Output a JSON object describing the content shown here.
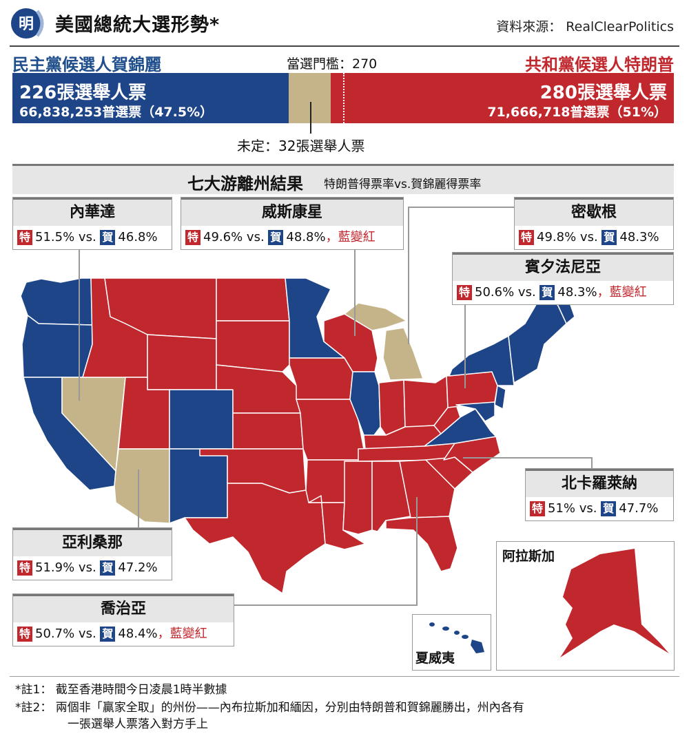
{
  "header": {
    "logo_text": "明",
    "title": "美國總統大選形勢*",
    "source": "資料來源： RealClearPolitics"
  },
  "colors": {
    "democrat": "#1e4588",
    "republican": "#c0282e",
    "undecided": "#c5b48a"
  },
  "candidates": {
    "democrat": {
      "title": "民主黨候選人賀錦麗",
      "electoral": "226張選舉人票",
      "popular": "66,838,253普選票（47.5%）",
      "electoral_votes": 226,
      "popular_share": 47.5
    },
    "republican": {
      "title": "共和黨候選人特朗普",
      "electoral": "280張選舉人票",
      "popular": "71,666,718普選票（51%）",
      "electoral_votes": 280,
      "popular_share": 51
    }
  },
  "threshold": "當選門檻：270",
  "undecided": {
    "label": "未定：32張選舉人票",
    "electoral_votes": 32
  },
  "swing": {
    "title": "七大游離州結果",
    "subtitle": "特朗普得票率vs.賀錦麗得票率",
    "tag_trump": "特",
    "tag_harris": "賀",
    "states": [
      {
        "name": "內華達",
        "trump": "51.5%",
        "vs": "vs.",
        "harris": "46.8%",
        "note": ""
      },
      {
        "name": "威斯康星",
        "trump": "49.6%",
        "vs": "vs.",
        "harris": "48.8%",
        "note": "，藍變紅"
      },
      {
        "name": "密歇根",
        "trump": "49.8%",
        "vs": "vs.",
        "harris": "48.3%",
        "note": ""
      },
      {
        "name": "賓夕法尼亞",
        "trump": "50.6%",
        "vs": "vs.",
        "harris": "48.3%",
        "note": "，藍變紅"
      },
      {
        "name": "北卡羅萊納",
        "trump": "51%",
        "vs": "vs.",
        "harris": "47.7%",
        "note": ""
      },
      {
        "name": "亞利桑那",
        "trump": "51.9%",
        "vs": "vs.",
        "harris": "47.2%",
        "note": ""
      },
      {
        "name": "喬治亞",
        "trump": "50.7%",
        "vs": "vs.",
        "harris": "48.4%",
        "note": "，藍變紅"
      }
    ]
  },
  "insets": {
    "alaska": "阿拉斯加",
    "hawaii": "夏威夷"
  },
  "notes": [
    {
      "mark": "*註1：",
      "text": "截至香港時間今日凌晨1時半數據"
    },
    {
      "mark": "*註2：",
      "text": "兩個非「贏家全取」的州份——內布拉斯加和緬因，分別由特朗普和賀錦麗勝出，州內各有",
      "text2": "一張選舉人票落入對方手上"
    }
  ]
}
